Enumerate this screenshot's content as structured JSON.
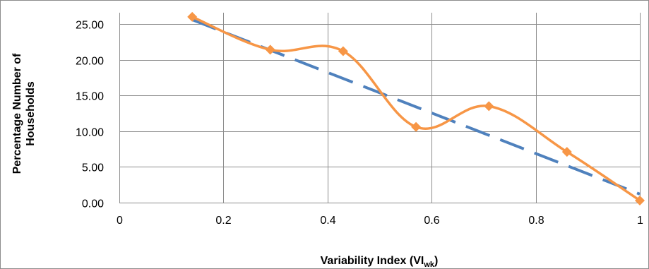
{
  "chart_data": {
    "type": "scatter",
    "title": "",
    "xlabel": {
      "main": "Variability Index (VI",
      "sub": "wk",
      "close": ")"
    },
    "ylabel": {
      "line1": "Percentage Number of",
      "line2": "Households"
    },
    "xlim": [
      0,
      1
    ],
    "ylim": [
      0,
      25
    ],
    "x_ticks": [
      "0",
      "0.2",
      "0.4",
      "0.6",
      "0.8",
      "1"
    ],
    "y_ticks": [
      "0.00",
      "5.00",
      "10.00",
      "15.00",
      "20.00",
      "25.00"
    ],
    "grid": true,
    "legend": "none",
    "series": [
      {
        "style": "smoothed line with diamond markers",
        "color": "#F79646",
        "x": [
          0.14,
          0.29,
          0.43,
          0.57,
          0.71,
          0.86,
          1.0
        ],
        "y": [
          26.0,
          21.4,
          21.2,
          10.6,
          13.5,
          7.1,
          0.3
        ]
      }
    ],
    "trendline": {
      "type": "linear",
      "style": "dashed",
      "color": "#4F81BD",
      "x": [
        0.14,
        1.0
      ],
      "y": [
        25.6,
        1.2
      ]
    }
  }
}
